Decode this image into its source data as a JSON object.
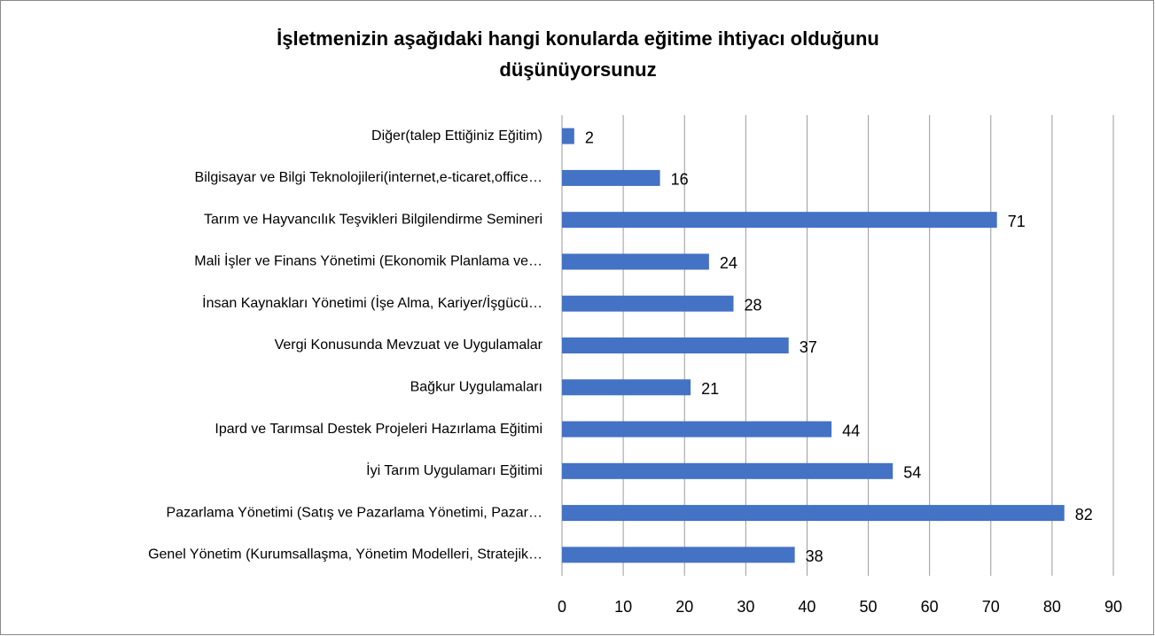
{
  "chart_data": {
    "type": "hbar",
    "title": [
      "İşletmenizin aşağıdaki hangi konularda eğitime ihtiyacı olduğunu",
      "düşünüyorsunuz"
    ],
    "categories": [
      "Diğer(talep Ettiğiniz Eğitim)",
      "Bilgisayar ve Bilgi Teknolojileri(internet,e-ticaret,office…",
      "Tarım ve Hayvancılık Teşvikleri Bilgilendirme Semineri",
      "Mali İşler ve Finans Yönetimi (Ekonomik Planlama ve…",
      "İnsan Kaynakları Yönetimi (İşe Alma, Kariyer/İşgücü…",
      "Vergi Konusunda Mevzuat ve Uygulamalar",
      "Bağkur Uygulamaları",
      "Ipard ve Tarımsal Destek Projeleri Hazırlama Eğitimi",
      "İyi Tarım Uygulamarı Eğitimi",
      "Pazarlama Yönetimi (Satış ve Pazarlama Yönetimi, Pazar…",
      "Genel Yönetim (Kurumsallaşma, Yönetim Modelleri, Stratejik…"
    ],
    "values": [
      2,
      16,
      71,
      24,
      28,
      37,
      21,
      44,
      54,
      82,
      38
    ],
    "color": "#4472c4",
    "xlim": [
      0,
      90
    ],
    "xticks": [
      0,
      10,
      20,
      30,
      40,
      50,
      60,
      70,
      80,
      90
    ],
    "grid": true
  }
}
